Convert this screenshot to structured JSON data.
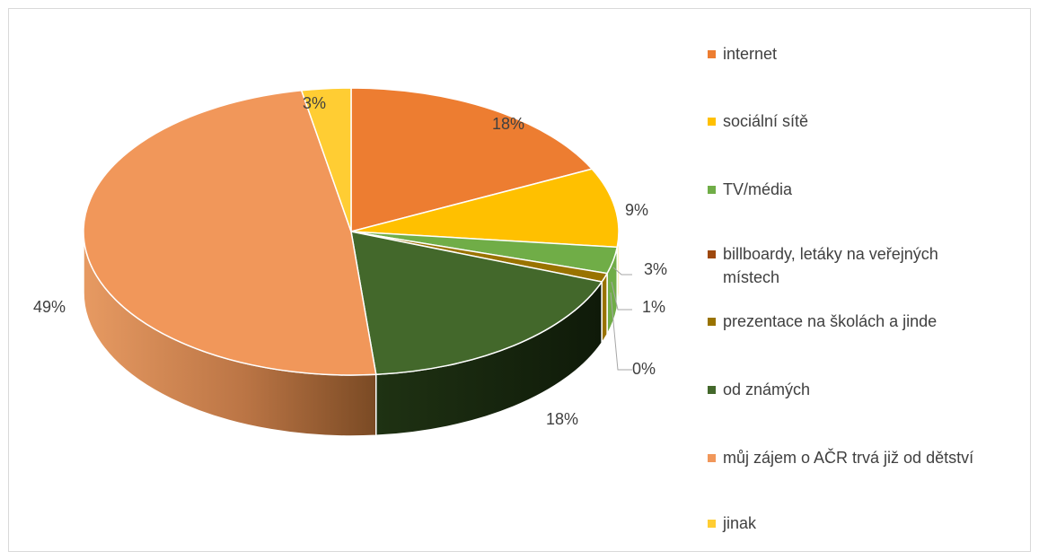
{
  "chart_data": {
    "type": "pie",
    "style": "3d",
    "categories": [
      "internet",
      "sociální sítě",
      "TV/média",
      "billboardy, letáky na veřejných místech",
      "prezentace na školách a jinde",
      "od známých",
      "můj zájem o AČR trvá již od dětství",
      "jinak"
    ],
    "values": [
      18,
      9,
      3,
      0,
      1,
      18,
      49,
      3
    ],
    "data_labels": [
      "18%",
      "9%",
      "3%",
      "0%",
      "1%",
      "18%",
      "49%",
      "3%"
    ],
    "colors": [
      "#ED7D31",
      "#FFC000",
      "#70AD47",
      "#9E480E",
      "#997300",
      "#43682B",
      "#F1975A",
      "#FFCD33"
    ],
    "legend_position": "right"
  },
  "legend": {
    "items": [
      {
        "label": "internet",
        "color": "#ED7D31"
      },
      {
        "label": "sociální sítě",
        "color": "#FFC000"
      },
      {
        "label": "TV/média",
        "color": "#70AD47"
      },
      {
        "label": "billboardy, letáky na veřejných",
        "label2": "místech",
        "color": "#9E480E"
      },
      {
        "label": "prezentace na školách a jinde",
        "color": "#997300"
      },
      {
        "label": "od známých",
        "color": "#43682B"
      },
      {
        "label": "můj zájem o AČR trvá již od dětství",
        "color": "#F1975A"
      },
      {
        "label": "jinak",
        "color": "#FFCD33"
      }
    ]
  }
}
